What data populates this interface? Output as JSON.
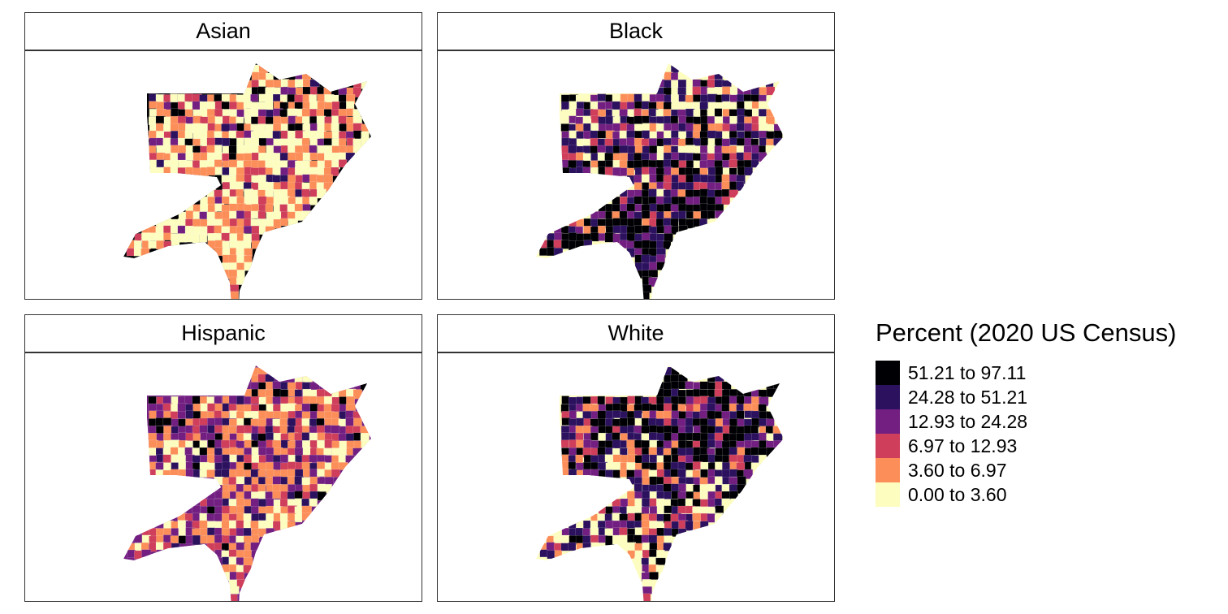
{
  "panels": [
    {
      "title": "Asian",
      "key": "asian",
      "distribution": [
        0.45,
        0.3,
        0.12,
        0.07,
        0.04,
        0.02
      ],
      "base": 0,
      "north_bias": 2.2
    },
    {
      "title": "Black",
      "key": "black",
      "distribution": [
        0.06,
        0.1,
        0.08,
        0.14,
        0.25,
        0.37
      ],
      "base": 5,
      "north_bias": -3.2
    },
    {
      "title": "Hispanic",
      "key": "hispanic",
      "distribution": [
        0.18,
        0.3,
        0.18,
        0.2,
        0.1,
        0.04
      ],
      "base": 2,
      "north_bias": 0.6
    },
    {
      "title": "White",
      "key": "white",
      "distribution": [
        0.16,
        0.1,
        0.08,
        0.14,
        0.2,
        0.32
      ],
      "base": 5,
      "north_bias": 3.2
    }
  ],
  "legend": {
    "title": "Percent (2020 US Census)",
    "classes": [
      {
        "label": "51.21 to 97.11",
        "color": "#000004"
      },
      {
        "label": "24.28 to 51.21",
        "color": "#2c115f"
      },
      {
        "label": "12.93 to 24.28",
        "color": "#721f81"
      },
      {
        "label": "6.97 to 12.93",
        "color": "#cf3e5a"
      },
      {
        "label": "3.60 to 6.97",
        "color": "#fc8e59"
      },
      {
        "label": "0.00 to 3.60",
        "color": "#fcfdbf"
      }
    ]
  }
}
